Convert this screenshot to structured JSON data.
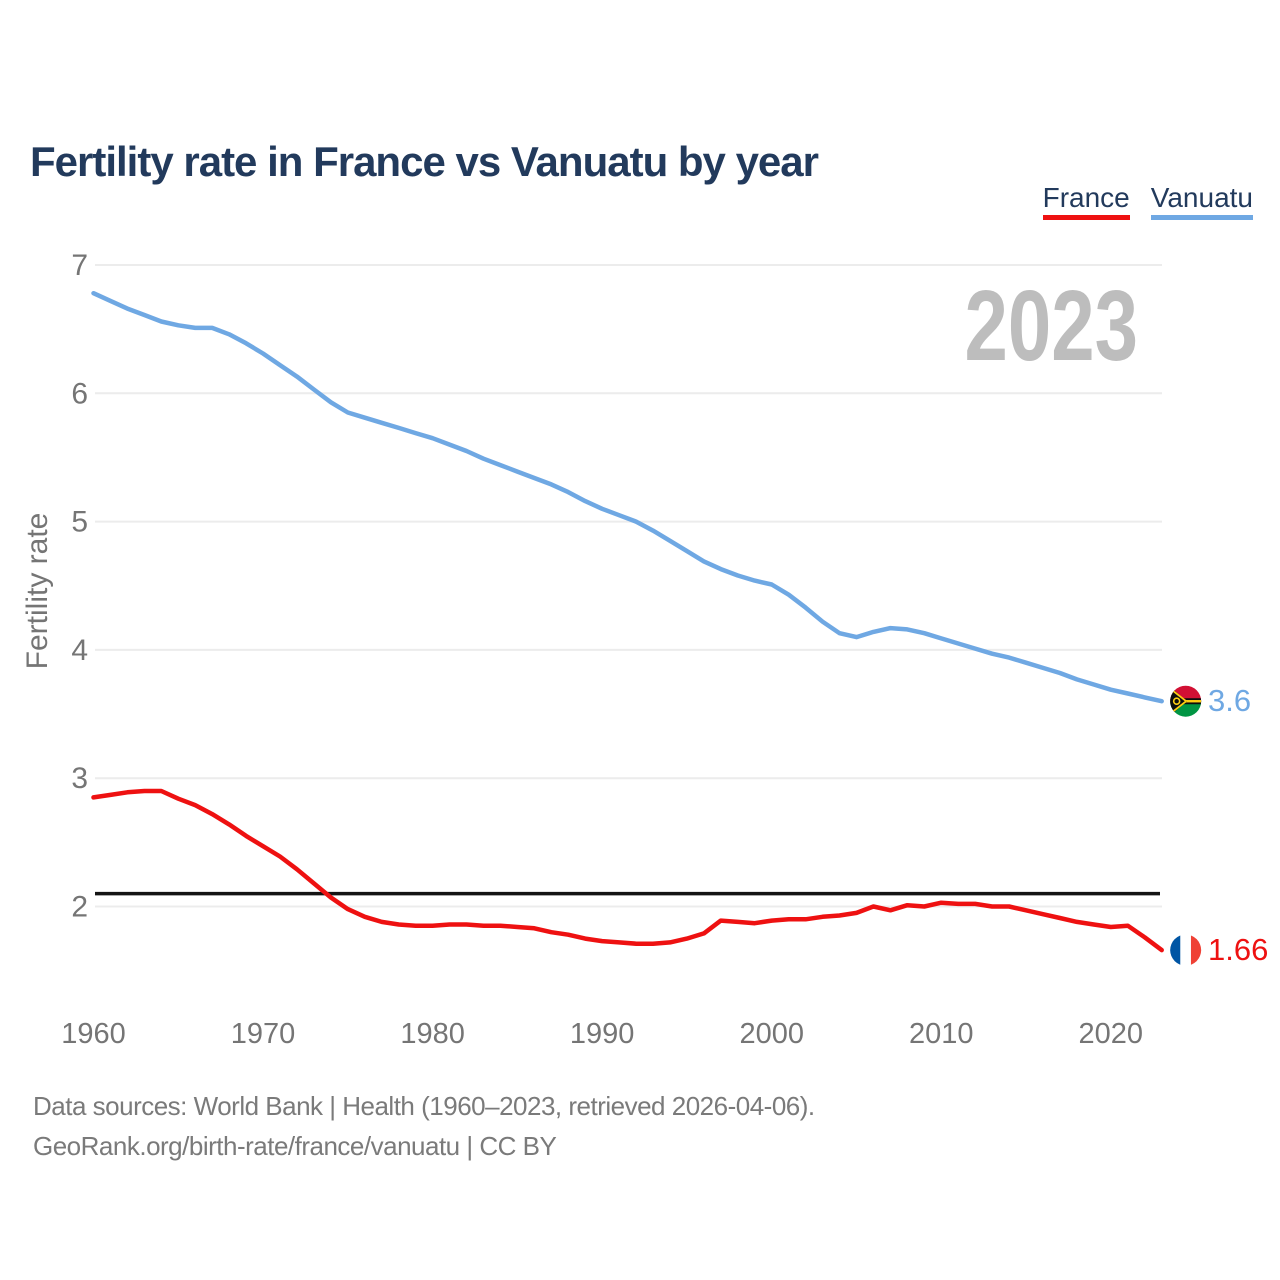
{
  "header": {
    "title": "Fertility rate in France vs Vanuatu by year"
  },
  "legend": {
    "france_label": "France",
    "vanuatu_label": "Vanuatu"
  },
  "watermark": "2023",
  "footer": {
    "line1": "Data sources: World Bank | Health (1960–2023, retrieved 2026-04-06).",
    "line2": "GeoRank.org/birth-rate/france/vanuatu | CC BY"
  },
  "colors": {
    "title_navy": "#223a5c",
    "france_red": "#ee1111",
    "vanuatu_blue": "#6fa8e3",
    "axis_gray": "#757575",
    "grid_gray": "#ececec",
    "watermark_gray": "#bdbdbd",
    "footer_gray": "#7a7a7a",
    "reference_black": "#141414"
  },
  "chart_data": {
    "type": "line",
    "title": "Fertility rate in France vs Vanuatu by year",
    "xlabel": "",
    "ylabel": "Fertility rate",
    "x_start": 1960,
    "x_end": 2023,
    "x_ticks": [
      1960,
      1970,
      1980,
      1990,
      2000,
      2010,
      2020
    ],
    "y_ticks": [
      2,
      3,
      4,
      5,
      6,
      7
    ],
    "ylim": [
      1.5,
      7.05
    ],
    "grid": "horizontal-only",
    "legend_position": "top-right",
    "reference_line": {
      "value": 2.1,
      "color": "#141414"
    },
    "watermark_year": "2023",
    "series": [
      {
        "name": "France",
        "color": "#ee1111",
        "flag": "france",
        "end_label": "1.66",
        "end_value": 1.66,
        "values": [
          2.85,
          2.87,
          2.89,
          2.9,
          2.9,
          2.84,
          2.79,
          2.72,
          2.64,
          2.55,
          2.47,
          2.39,
          2.29,
          2.18,
          2.07,
          1.98,
          1.92,
          1.88,
          1.86,
          1.85,
          1.85,
          1.86,
          1.86,
          1.85,
          1.85,
          1.84,
          1.83,
          1.8,
          1.78,
          1.75,
          1.73,
          1.72,
          1.71,
          1.71,
          1.72,
          1.75,
          1.79,
          1.89,
          1.88,
          1.87,
          1.89,
          1.9,
          1.9,
          1.92,
          1.93,
          1.95,
          2.0,
          1.97,
          2.01,
          2.0,
          2.03,
          2.02,
          2.02,
          2.0,
          2.0,
          1.97,
          1.94,
          1.91,
          1.88,
          1.86,
          1.84,
          1.85,
          1.76,
          1.66
        ]
      },
      {
        "name": "Vanuatu",
        "color": "#6fa8e3",
        "flag": "vanuatu",
        "end_label": "3.6",
        "end_value": 3.6,
        "values": [
          6.78,
          6.72,
          6.66,
          6.61,
          6.56,
          6.53,
          6.51,
          6.51,
          6.46,
          6.39,
          6.31,
          6.22,
          6.13,
          6.03,
          5.93,
          5.85,
          5.81,
          5.77,
          5.73,
          5.69,
          5.65,
          5.6,
          5.55,
          5.49,
          5.44,
          5.39,
          5.34,
          5.29,
          5.23,
          5.16,
          5.1,
          5.05,
          5.0,
          4.93,
          4.85,
          4.77,
          4.69,
          4.63,
          4.58,
          4.54,
          4.51,
          4.43,
          4.33,
          4.22,
          4.13,
          4.1,
          4.14,
          4.17,
          4.16,
          4.13,
          4.09,
          4.05,
          4.01,
          3.97,
          3.94,
          3.9,
          3.86,
          3.82,
          3.77,
          3.73,
          3.69,
          3.66,
          3.63,
          3.6
        ]
      }
    ]
  }
}
